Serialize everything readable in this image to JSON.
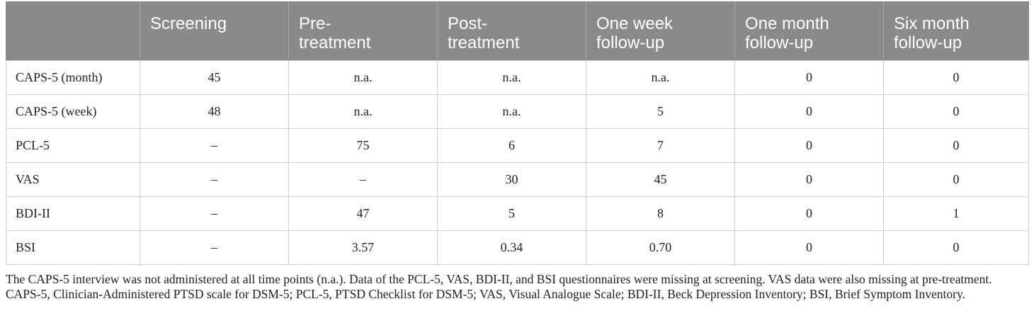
{
  "table": {
    "headers": [
      {
        "line1": "",
        "line2": ""
      },
      {
        "line1": "Screening",
        "line2": ""
      },
      {
        "line1": "Pre-",
        "line2": "treatment"
      },
      {
        "line1": "Post-",
        "line2": "treatment"
      },
      {
        "line1": "One week",
        "line2": "follow-up"
      },
      {
        "line1": "One month",
        "line2": "follow-up"
      },
      {
        "line1": "Six month",
        "line2": "follow-up"
      }
    ],
    "rows": [
      [
        "CAPS-5 (month)",
        "45",
        "n.a.",
        "n.a.",
        "n.a.",
        "0",
        "0"
      ],
      [
        "CAPS-5 (week)",
        "48",
        "n.a.",
        "n.a.",
        "5",
        "0",
        "0"
      ],
      [
        "PCL-5",
        "–",
        "75",
        "6",
        "7",
        "0",
        "0"
      ],
      [
        "VAS",
        "–",
        "–",
        "30",
        "45",
        "0",
        "0"
      ],
      [
        "BDI-II",
        "–",
        "47",
        "5",
        "8",
        "0",
        "1"
      ],
      [
        "BSI",
        "–",
        "3.57",
        "0.34",
        "0.70",
        "0",
        "0"
      ]
    ]
  },
  "notes": {
    "note1": "The CAPS-5 interview was not administered at all time points (n.a.). Data of the PCL-5, VAS, BDI-II, and BSI questionnaires were missing at screening. VAS data were also missing at pre-treatment.",
    "note2": "CAPS-5, Clinician-Administered PTSD scale for DSM-5; PCL-5, PTSD Checklist for DSM-5; VAS, Visual Analogue Scale; BDI-II, Beck Depression Inventory; BSI, Brief Symptom Inventory."
  }
}
